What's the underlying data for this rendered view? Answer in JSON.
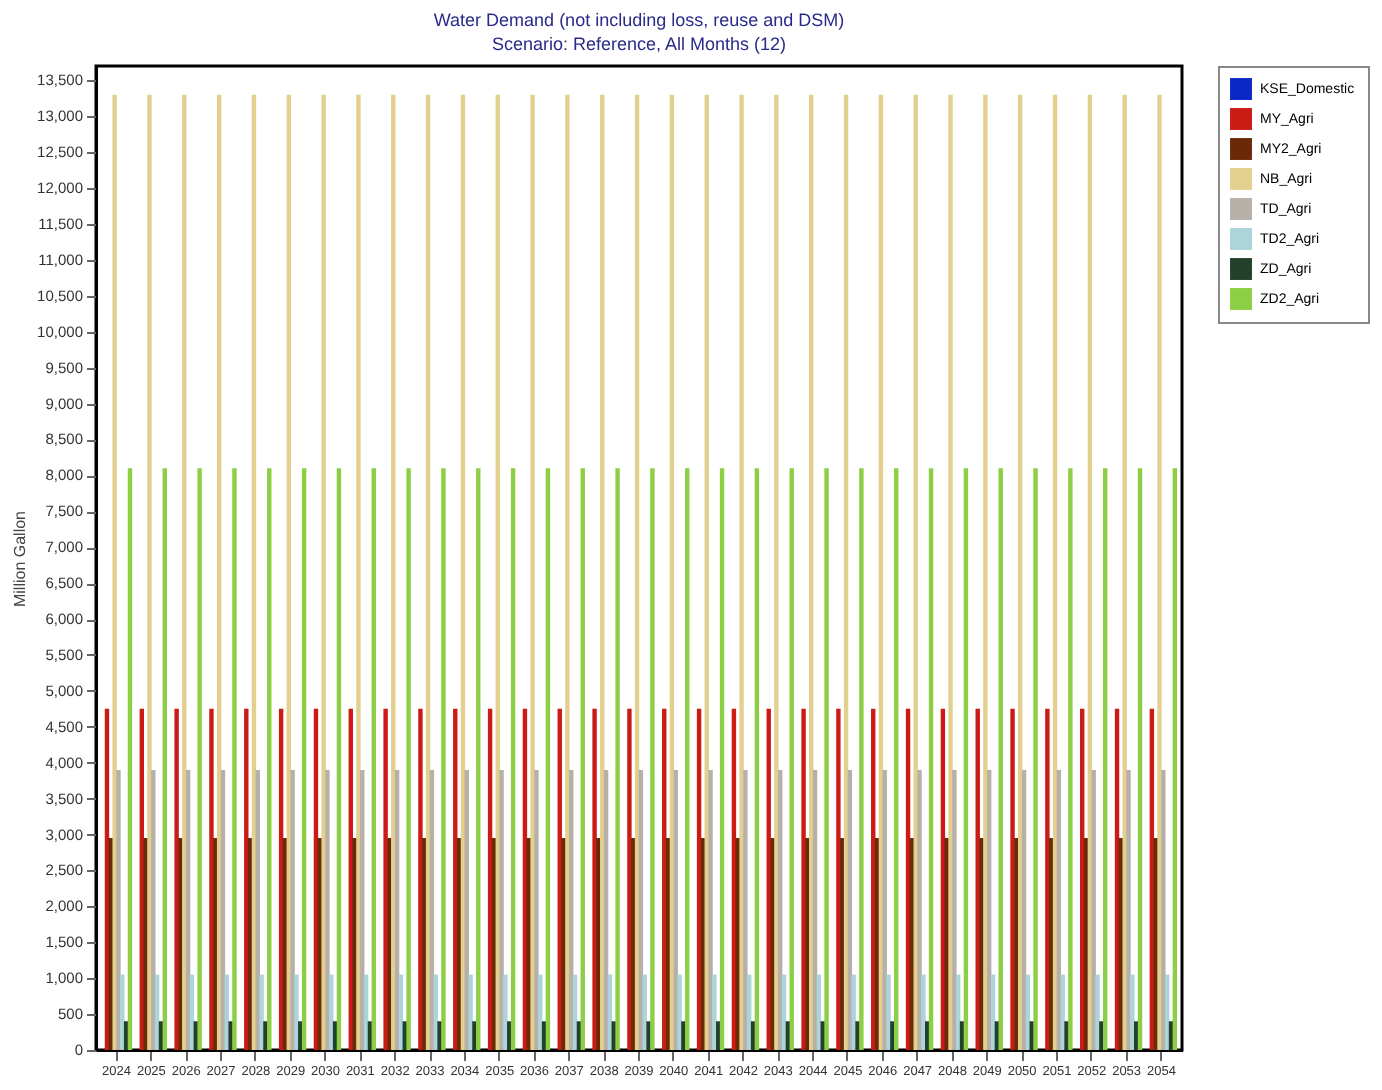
{
  "chart_data": {
    "type": "bar",
    "title": "Water Demand (not including loss, reuse and DSM)",
    "subtitle": "Scenario: Reference,  All Months (12)",
    "ylabel": "Million Gallon",
    "categories": [
      "2024",
      "2025",
      "2026",
      "2027",
      "2028",
      "2029",
      "2030",
      "2031",
      "2032",
      "2033",
      "2034",
      "2035",
      "2036",
      "2037",
      "2038",
      "2039",
      "2040",
      "2041",
      "2042",
      "2043",
      "2044",
      "2045",
      "2046",
      "2047",
      "2048",
      "2049",
      "2050",
      "2051",
      "2052",
      "2053",
      "2054"
    ],
    "series": [
      {
        "name": "KSE_Domestic",
        "color": "#0a28c8",
        "values": [
          0,
          0,
          0,
          0,
          0,
          0,
          0,
          0,
          0,
          0,
          0,
          0,
          0,
          0,
          0,
          0,
          0,
          0,
          0,
          0,
          0,
          0,
          0,
          0,
          0,
          0,
          0,
          0,
          0,
          0,
          0
        ]
      },
      {
        "name": "MY_Agri",
        "color": "#cc1a14",
        "values": [
          4750,
          4750,
          4750,
          4750,
          4750,
          4750,
          4750,
          4750,
          4750,
          4750,
          4750,
          4750,
          4750,
          4750,
          4750,
          4750,
          4750,
          4750,
          4750,
          4750,
          4750,
          4750,
          4750,
          4750,
          4750,
          4750,
          4750,
          4750,
          4750,
          4750,
          4750
        ]
      },
      {
        "name": "MY2_Agri",
        "color": "#6a2a08",
        "values": [
          2950,
          2950,
          2950,
          2950,
          2950,
          2950,
          2950,
          2950,
          2950,
          2950,
          2950,
          2950,
          2950,
          2950,
          2950,
          2950,
          2950,
          2950,
          2950,
          2950,
          2950,
          2950,
          2950,
          2950,
          2950,
          2950,
          2950,
          2950,
          2950,
          2950,
          2950
        ]
      },
      {
        "name": "NB_Agri",
        "color": "#e3cf8e",
        "values": [
          13300,
          13300,
          13300,
          13300,
          13300,
          13300,
          13300,
          13300,
          13300,
          13300,
          13300,
          13300,
          13300,
          13300,
          13300,
          13300,
          13300,
          13300,
          13300,
          13300,
          13300,
          13300,
          13300,
          13300,
          13300,
          13300,
          13300,
          13300,
          13300,
          13300,
          13300
        ]
      },
      {
        "name": "TD_Agri",
        "color": "#b7b0a8",
        "values": [
          3900,
          3900,
          3900,
          3900,
          3900,
          3900,
          3900,
          3900,
          3900,
          3900,
          3900,
          3900,
          3900,
          3900,
          3900,
          3900,
          3900,
          3900,
          3900,
          3900,
          3900,
          3900,
          3900,
          3900,
          3900,
          3900,
          3900,
          3900,
          3900,
          3900,
          3900
        ]
      },
      {
        "name": "TD2_Agri",
        "color": "#acd4da",
        "values": [
          1050,
          1050,
          1050,
          1050,
          1050,
          1050,
          1050,
          1050,
          1050,
          1050,
          1050,
          1050,
          1050,
          1050,
          1050,
          1050,
          1050,
          1050,
          1050,
          1050,
          1050,
          1050,
          1050,
          1050,
          1050,
          1050,
          1050,
          1050,
          1050,
          1050,
          1050
        ]
      },
      {
        "name": "ZD_Agri",
        "color": "#23402a",
        "values": [
          400,
          400,
          400,
          400,
          400,
          400,
          400,
          400,
          400,
          400,
          400,
          400,
          400,
          400,
          400,
          400,
          400,
          400,
          400,
          400,
          400,
          400,
          400,
          400,
          400,
          400,
          400,
          400,
          400,
          400,
          400
        ]
      },
      {
        "name": "ZD2_Agri",
        "color": "#8ccf44",
        "values": [
          8100,
          8100,
          8100,
          8100,
          8100,
          8100,
          8100,
          8100,
          8100,
          8100,
          8100,
          8100,
          8100,
          8100,
          8100,
          8100,
          8100,
          8100,
          8100,
          8100,
          8100,
          8100,
          8100,
          8100,
          8100,
          8100,
          8100,
          8100,
          8100,
          8100,
          8100
        ]
      }
    ],
    "ylim": [
      0,
      13700
    ],
    "yticks": [
      0,
      500,
      {
        "value": 1000,
        "label": "1,000"
      },
      {
        "value": 1500,
        "label": "1,500"
      },
      {
        "value": 2000,
        "label": "2,000"
      },
      {
        "value": 2500,
        "label": "2,500"
      },
      {
        "value": 3000,
        "label": "3,000"
      },
      {
        "value": 3500,
        "label": "3,500"
      },
      {
        "value": 4000,
        "label": "4,000"
      },
      {
        "value": 4500,
        "label": "4,500"
      },
      {
        "value": 5000,
        "label": "5,000"
      },
      {
        "value": 5500,
        "label": "5,500"
      },
      {
        "value": 6000,
        "label": "6,000"
      },
      {
        "value": 6500,
        "label": "6,500"
      },
      {
        "value": 7000,
        "label": "7,000"
      },
      {
        "value": 7500,
        "label": "7,500"
      },
      {
        "value": 8000,
        "label": "8,000"
      },
      {
        "value": 8500,
        "label": "8,500"
      },
      {
        "value": 9000,
        "label": "9,000"
      },
      {
        "value": 9500,
        "label": "9,500"
      },
      {
        "value": 10000,
        "label": "10,000"
      },
      {
        "value": 10500,
        "label": "10,500"
      },
      {
        "value": 11000,
        "label": "11,000"
      },
      {
        "value": 11500,
        "label": "11,500"
      },
      {
        "value": 12000,
        "label": "12,000"
      },
      {
        "value": 12500,
        "label": "12,500"
      },
      {
        "value": 13000,
        "label": "13,000"
      },
      {
        "value": 13500,
        "label": "13,500"
      }
    ],
    "grid": false,
    "legend": "right"
  }
}
